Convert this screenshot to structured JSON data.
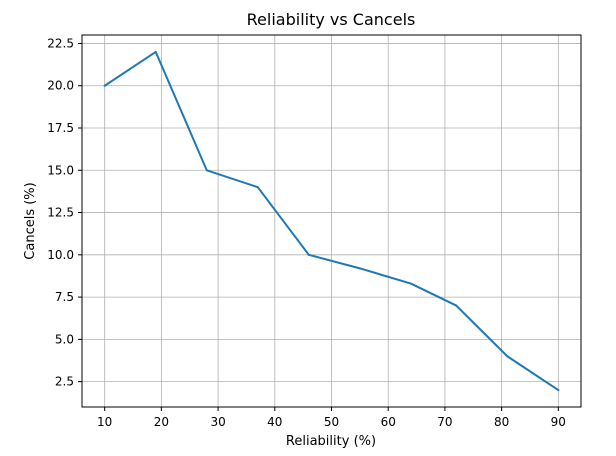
{
  "chart_data": {
    "type": "line",
    "title": "Reliability vs Cancels",
    "xlabel": "Reliability (%)",
    "ylabel": "Cancels (%)",
    "xlim": [
      6,
      94
    ],
    "ylim": [
      1.0,
      23.0
    ],
    "grid": true,
    "x_ticks": [
      10,
      20,
      30,
      40,
      50,
      60,
      70,
      80,
      90
    ],
    "x_tick_labels": [
      "10",
      "20",
      "30",
      "40",
      "50",
      "60",
      "70",
      "80",
      "90"
    ],
    "y_ticks": [
      2.5,
      5.0,
      7.5,
      10.0,
      12.5,
      15.0,
      17.5,
      20.0,
      22.5
    ],
    "y_tick_labels": [
      "2.5",
      "5.0",
      "7.5",
      "10.0",
      "12.5",
      "15.0",
      "17.5",
      "20.0",
      "22.5"
    ],
    "series": [
      {
        "name": "Cancels",
        "color": "#1f77b4",
        "x": [
          10,
          19,
          28,
          37,
          46,
          55,
          64,
          72,
          81,
          90
        ],
        "y": [
          20,
          22,
          15,
          14,
          10,
          9.2,
          8.3,
          7,
          4,
          2
        ]
      }
    ]
  }
}
